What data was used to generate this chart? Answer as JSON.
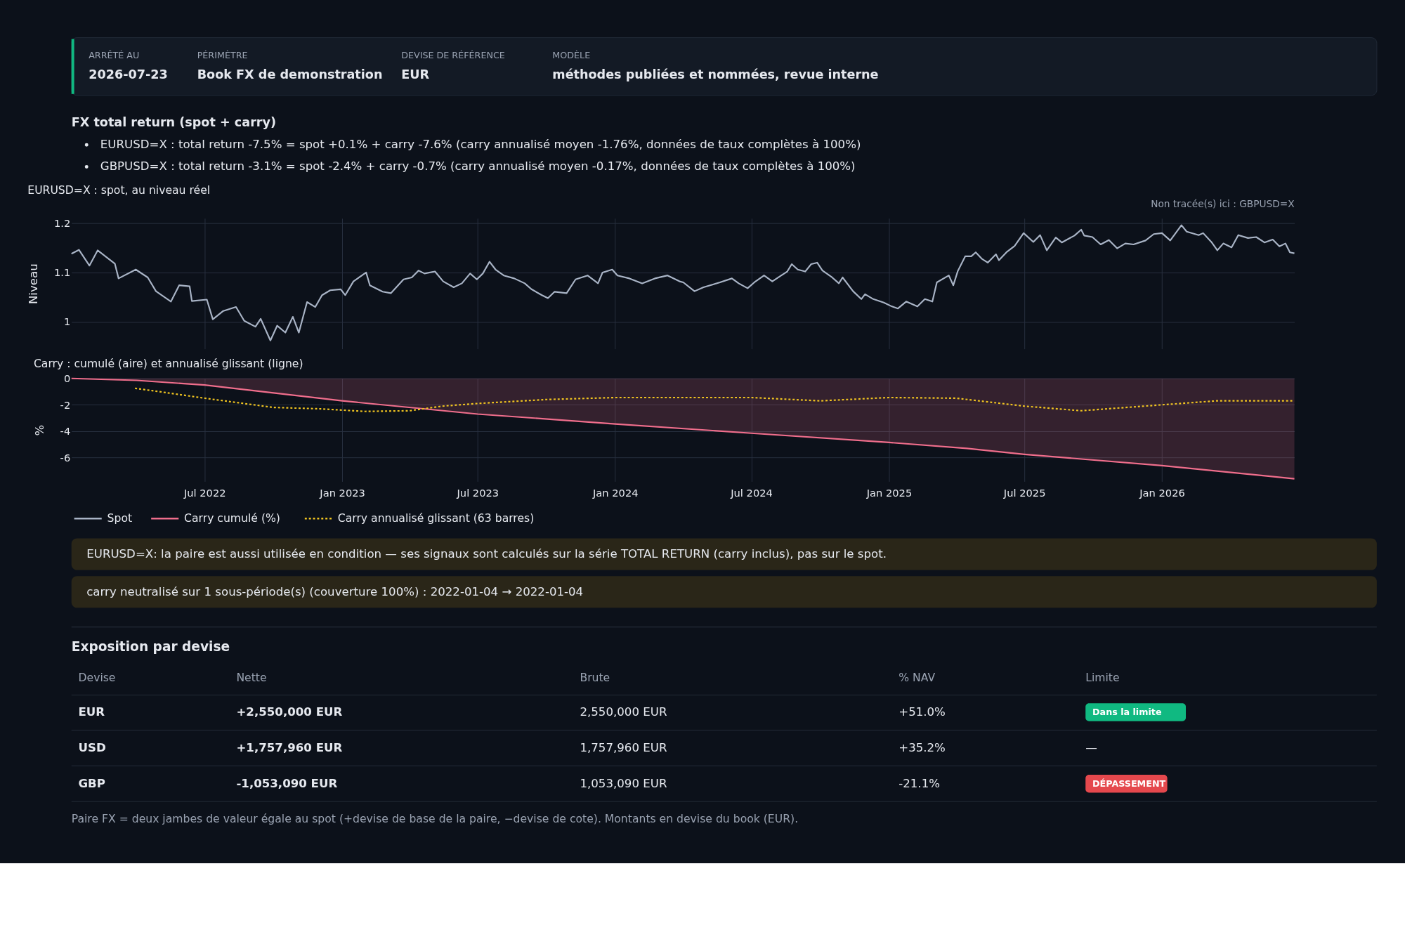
{
  "chart_data": [
    {
      "type": "other",
      "title": "FX total return (spot + carry)",
      "categories": [
        "ARRÊTÉ AU",
        "PÉRIMÈTRE",
        "DEVISE DE RÉFÉRENCE",
        "MODÈLE"
      ],
      "cell_labels": [
        [
          "2026-07-23",
          "Book FX de demonstration",
          "EUR",
          "méthodes publiées et nommées, revue interne"
        ]
      ],
      "annotations": [
        "EURUSD=X : total return -7.5% = spot +0.1% + carry -7.6% (carry annualisé moyen -1.76%, données de taux complètes à 100%)",
        "GBPUSD=X : total return -3.1% = spot -2.4% + carry -0.7% (carry annualisé moyen -0.17%, données de taux complètes à 100%)"
      ]
    },
    {
      "type": "line",
      "title": "EURUSD=X : spot, au niveau réel",
      "ylabel": "Niveau",
      "annotations": [
        "Non tracée(s) ici : GBPUSD=X"
      ],
      "xlim": [
        "2022-01-04",
        "2026-06-27"
      ],
      "ylim": [
        0.945,
        1.21
      ],
      "yticks": [
        1,
        1.1,
        1.2
      ],
      "xticks": [
        {
          "value": "2022-07-01",
          "label": null
        },
        {
          "value": "2023-01-01",
          "label": null
        },
        {
          "value": "2023-07-01",
          "label": null
        },
        {
          "value": "2024-01-01",
          "label": null
        },
        {
          "value": "2024-07-01",
          "label": null
        },
        {
          "value": "2025-01-01",
          "label": null
        },
        {
          "value": "2025-07-01",
          "label": null
        },
        {
          "value": "2026-01-01",
          "label": null
        }
      ],
      "tick_labels": "y",
      "grid": true,
      "legend": "bottom",
      "series": [
        {
          "name": "Spot",
          "type": "line",
          "color": "#a9b4c6",
          "x": [
            "2022-01-04",
            "2022-01-14",
            "2022-01-28",
            "2022-02-08",
            "2022-03-03",
            "2022-03-08",
            "2022-03-31",
            "2022-04-16",
            "2022-04-27",
            "2022-05-17",
            "2022-05-28",
            "2022-06-11",
            "2022-06-14",
            "2022-07-04",
            "2022-07-12",
            "2022-07-26",
            "2022-08-12",
            "2022-08-23",
            "2022-09-07",
            "2022-09-14",
            "2022-09-27",
            "2022-10-06",
            "2022-10-17",
            "2022-10-27",
            "2022-11-04",
            "2022-11-15",
            "2022-11-26",
            "2022-12-05",
            "2022-12-16",
            "2022-12-30",
            "2023-01-05",
            "2023-01-16",
            "2023-02-02",
            "2023-02-07",
            "2023-02-24",
            "2023-03-07",
            "2023-03-24",
            "2023-04-04",
            "2023-04-13",
            "2023-04-21",
            "2023-05-05",
            "2023-05-16",
            "2023-05-30",
            "2023-06-10",
            "2023-06-21",
            "2023-06-30",
            "2023-07-08",
            "2023-07-17",
            "2023-07-25",
            "2023-08-05",
            "2023-08-19",
            "2023-09-02",
            "2023-09-11",
            "2023-09-25",
            "2023-10-03",
            "2023-10-12",
            "2023-10-28",
            "2023-11-09",
            "2023-11-25",
            "2023-12-09",
            "2023-12-15",
            "2023-12-28",
            "2024-01-04",
            "2024-01-20",
            "2024-02-06",
            "2024-02-23",
            "2024-03-11",
            "2024-03-27",
            "2024-04-01",
            "2024-04-16",
            "2024-04-28",
            "2024-05-20",
            "2024-06-05",
            "2024-06-14",
            "2024-06-26",
            "2024-07-05",
            "2024-07-18",
            "2024-07-29",
            "2024-08-10",
            "2024-08-18",
            "2024-08-24",
            "2024-09-01",
            "2024-09-11",
            "2024-09-19",
            "2024-09-27",
            "2024-10-04",
            "2024-10-17",
            "2024-10-26",
            "2024-10-31",
            "2024-11-14",
            "2024-11-25",
            "2024-11-30",
            "2024-12-11",
            "2024-12-25",
            "2025-01-05",
            "2025-01-13",
            "2025-01-24",
            "2025-02-08",
            "2025-02-18",
            "2025-02-28",
            "2025-03-06",
            "2025-03-22",
            "2025-03-28",
            "2025-04-03",
            "2025-04-13",
            "2025-04-21",
            "2025-04-27",
            "2025-05-05",
            "2025-05-13",
            "2025-05-24",
            "2025-05-28",
            "2025-06-07",
            "2025-06-18",
            "2025-06-30",
            "2025-07-13",
            "2025-07-22",
            "2025-07-31",
            "2025-08-12",
            "2025-08-20",
            "2025-09-06",
            "2025-09-15",
            "2025-09-19",
            "2025-09-30",
            "2025-10-11",
            "2025-10-22",
            "2025-11-02",
            "2025-11-13",
            "2025-11-24",
            "2025-12-10",
            "2025-12-21",
            "2026-01-01",
            "2026-01-12",
            "2026-01-27",
            "2026-02-03",
            "2026-02-19",
            "2026-02-25",
            "2026-03-08",
            "2026-03-16",
            "2026-03-24",
            "2026-04-04",
            "2026-04-13",
            "2026-04-26",
            "2026-05-07",
            "2026-05-18",
            "2026-05-29",
            "2026-06-07",
            "2026-06-15",
            "2026-06-21",
            "2026-06-27"
          ],
          "values": [
            1.138,
            1.146,
            1.114,
            1.145,
            1.118,
            1.088,
            1.106,
            1.09,
            1.062,
            1.041,
            1.074,
            1.072,
            1.042,
            1.045,
            1.005,
            1.022,
            1.03,
            1.002,
            0.99,
            1.006,
            0.962,
            0.992,
            0.978,
            1.01,
            0.978,
            1.04,
            1.03,
            1.054,
            1.064,
            1.066,
            1.054,
            1.082,
            1.1,
            1.074,
            1.061,
            1.058,
            1.086,
            1.09,
            1.104,
            1.098,
            1.102,
            1.082,
            1.07,
            1.078,
            1.098,
            1.086,
            1.098,
            1.122,
            1.106,
            1.094,
            1.088,
            1.078,
            1.066,
            1.054,
            1.048,
            1.061,
            1.058,
            1.086,
            1.094,
            1.078,
            1.1,
            1.106,
            1.094,
            1.088,
            1.078,
            1.088,
            1.094,
            1.082,
            1.08,
            1.062,
            1.07,
            1.08,
            1.088,
            1.078,
            1.068,
            1.08,
            1.094,
            1.082,
            1.094,
            1.102,
            1.117,
            1.106,
            1.102,
            1.117,
            1.12,
            1.104,
            1.09,
            1.078,
            1.09,
            1.062,
            1.046,
            1.056,
            1.046,
            1.039,
            1.031,
            1.027,
            1.041,
            1.031,
            1.046,
            1.041,
            1.08,
            1.094,
            1.074,
            1.103,
            1.133,
            1.133,
            1.141,
            1.128,
            1.12,
            1.137,
            1.125,
            1.141,
            1.154,
            1.18,
            1.162,
            1.176,
            1.145,
            1.171,
            1.161,
            1.175,
            1.187,
            1.175,
            1.172,
            1.157,
            1.166,
            1.149,
            1.159,
            1.157,
            1.165,
            1.178,
            1.18,
            1.165,
            1.196,
            1.183,
            1.176,
            1.18,
            1.162,
            1.145,
            1.159,
            1.151,
            1.176,
            1.17,
            1.172,
            1.161,
            1.167,
            1.153,
            1.159,
            1.141,
            1.139
          ]
        }
      ]
    },
    {
      "type": "line",
      "title": "Carry : cumulé (aire) et annualisé glissant (ligne)",
      "ylabel": "%",
      "annotations": [
        "EURUSD=X: la paire est aussi utilisée en condition — ses signaux sont calculés sur la série TOTAL RETURN (carry inclus), pas sur le spot.",
        "carry neutralisé sur 1 sous-période(s) (couverture 100%) : 2022-01-04 → 2022-01-04"
      ],
      "xlim": [
        "2022-01-04",
        "2026-06-27"
      ],
      "ylim": [
        -7.8,
        0
      ],
      "yticks": [
        0,
        -2,
        -4,
        -6
      ],
      "xticks": [
        {
          "value": "2022-07-01",
          "label": "Jul 2022"
        },
        {
          "value": "2023-01-01",
          "label": "Jan 2023"
        },
        {
          "value": "2023-07-01",
          "label": "Jul 2023"
        },
        {
          "value": "2024-01-01",
          "label": "Jan 2024"
        },
        {
          "value": "2024-07-01",
          "label": "Jul 2024"
        },
        {
          "value": "2025-01-01",
          "label": "Jan 2025"
        },
        {
          "value": "2025-07-01",
          "label": "Jul 2025"
        },
        {
          "value": "2026-01-01",
          "label": "Jan 2026"
        }
      ],
      "grid": true,
      "legend": "bottom",
      "series": [
        {
          "name": "Carry cumulé (%)",
          "type": "area",
          "color": "#f06e8c",
          "x": [
            "2022-01-04",
            "2022-04-01",
            "2022-07-01",
            "2023-01-01",
            "2023-07-01",
            "2024-01-01",
            "2024-07-01",
            "2025-01-01",
            "2025-04-15",
            "2025-07-01",
            "2026-01-01",
            "2026-06-27"
          ],
          "values": [
            0,
            -0.15,
            -0.5,
            -1.7,
            -2.7,
            -3.45,
            -4.15,
            -4.85,
            -5.3,
            -5.75,
            -6.6,
            -7.6
          ]
        },
        {
          "name": "Carry annualisé glissant (63 barres)",
          "type": "line",
          "line_style": "dotted",
          "color": "#f0c420",
          "x": [
            "2022-03-30",
            "2022-05-01",
            "2022-07-01",
            "2022-10-01",
            "2022-12-01",
            "2023-02-01",
            "2023-04-01",
            "2023-05-15",
            "2023-07-01",
            "2023-10-01",
            "2024-01-01",
            "2024-07-01",
            "2024-10-01",
            "2025-01-01",
            "2025-04-01",
            "2025-07-01",
            "2025-09-15",
            "2026-01-01",
            "2026-03-15",
            "2026-06-27"
          ],
          "values": [
            -0.75,
            -1.0,
            -1.5,
            -2.2,
            -2.3,
            -2.5,
            -2.45,
            -2.1,
            -1.9,
            -1.6,
            -1.45,
            -1.45,
            -1.7,
            -1.45,
            -1.5,
            -2.1,
            -2.45,
            -2.0,
            -1.7,
            -1.7
          ]
        }
      ]
    },
    {
      "type": "other",
      "title": "Exposition par devise",
      "categories": [
        "Devise",
        "Nette",
        "Brute",
        "% NAV",
        "Limite"
      ],
      "y_categories": [
        "EUR",
        "USD",
        "GBP"
      ],
      "cell_labels": [
        [
          "+2,550,000 EUR",
          "2,550,000 EUR",
          "+51.0%",
          "Dans la limite"
        ],
        [
          "+1,757,960 EUR",
          "1,757,960 EUR",
          "+35.2%",
          "—"
        ],
        [
          "-1,053,090 EUR",
          "1,053,090 EUR",
          "-21.1%",
          "DÉPASSEMENT"
        ]
      ],
      "colors": [
        "#10b981",
        null,
        "#e5484d"
      ],
      "annotations": [
        "Paire FX = deux jambes de valeur égale au spot (+devise de base de la paire, −devise de cote). Montants en devise du book (EUR)."
      ]
    }
  ]
}
